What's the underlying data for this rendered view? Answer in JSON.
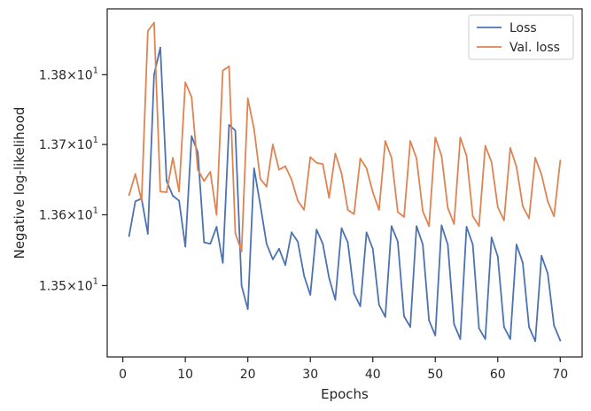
{
  "chart_data": {
    "type": "line",
    "xlabel": "Epochs",
    "ylabel": "Negative log-likelihood",
    "xlim": [
      -2.5,
      73.5
    ],
    "ylim": [
      13.4,
      13.895
    ],
    "y_scale": "log",
    "grid": false,
    "legend_position": "top-right",
    "x_ticks": [
      {
        "value": 0,
        "label": "0"
      },
      {
        "value": 10,
        "label": "10"
      },
      {
        "value": 20,
        "label": "20"
      },
      {
        "value": 30,
        "label": "30"
      },
      {
        "value": 40,
        "label": "40"
      },
      {
        "value": 50,
        "label": "50"
      },
      {
        "value": 60,
        "label": "60"
      },
      {
        "value": 70,
        "label": "70"
      }
    ],
    "y_ticks": [
      {
        "value": 13.5,
        "mantissa": "1.35",
        "base": "10",
        "exp": "1"
      },
      {
        "value": 13.6,
        "mantissa": "1.36",
        "base": "10",
        "exp": "1"
      },
      {
        "value": 13.7,
        "mantissa": "1.37",
        "base": "10",
        "exp": "1"
      },
      {
        "value": 13.8,
        "mantissa": "1.38",
        "base": "10",
        "exp": "1"
      }
    ],
    "x": [
      1,
      2,
      3,
      4,
      5,
      6,
      7,
      8,
      9,
      10,
      11,
      12,
      13,
      14,
      15,
      16,
      17,
      18,
      19,
      20,
      21,
      22,
      23,
      24,
      25,
      26,
      27,
      28,
      29,
      30,
      31,
      32,
      33,
      34,
      35,
      36,
      37,
      38,
      39,
      40,
      41,
      42,
      43,
      44,
      45,
      46,
      47,
      48,
      49,
      50,
      51,
      52,
      53,
      54,
      55,
      56,
      57,
      58,
      59,
      60,
      61,
      62,
      63,
      64,
      65,
      66,
      67,
      68,
      69,
      70
    ],
    "series": [
      {
        "name": "Loss",
        "color": "#4c72b0",
        "values": [
          13.57,
          13.619,
          13.623,
          13.573,
          13.8,
          13.839,
          13.648,
          13.627,
          13.62,
          13.555,
          13.712,
          13.689,
          13.561,
          13.559,
          13.583,
          13.532,
          13.728,
          13.72,
          13.5,
          13.467,
          13.666,
          13.614,
          13.559,
          13.537,
          13.552,
          13.529,
          13.575,
          13.562,
          13.514,
          13.487,
          13.579,
          13.559,
          13.511,
          13.48,
          13.581,
          13.561,
          13.489,
          13.471,
          13.575,
          13.552,
          13.473,
          13.456,
          13.584,
          13.562,
          13.457,
          13.442,
          13.584,
          13.558,
          13.451,
          13.43,
          13.585,
          13.558,
          13.446,
          13.425,
          13.583,
          13.558,
          13.44,
          13.425,
          13.568,
          13.541,
          13.442,
          13.425,
          13.558,
          13.532,
          13.442,
          13.422,
          13.542,
          13.517,
          13.444,
          13.423
        ]
      },
      {
        "name": "Val. loss",
        "color": "#dd8452",
        "values": [
          13.628,
          13.658,
          13.62,
          13.863,
          13.875,
          13.633,
          13.632,
          13.681,
          13.633,
          13.789,
          13.768,
          13.664,
          13.648,
          13.661,
          13.6,
          13.806,
          13.812,
          13.574,
          13.548,
          13.766,
          13.722,
          13.651,
          13.64,
          13.7,
          13.664,
          13.669,
          13.65,
          13.62,
          13.607,
          13.682,
          13.674,
          13.672,
          13.624,
          13.687,
          13.659,
          13.607,
          13.601,
          13.68,
          13.666,
          13.632,
          13.607,
          13.705,
          13.681,
          13.604,
          13.597,
          13.705,
          13.68,
          13.605,
          13.584,
          13.71,
          13.684,
          13.61,
          13.587,
          13.71,
          13.684,
          13.598,
          13.584,
          13.698,
          13.675,
          13.611,
          13.592,
          13.695,
          13.668,
          13.612,
          13.595,
          13.681,
          13.657,
          13.619,
          13.598,
          13.677
        ]
      }
    ]
  }
}
